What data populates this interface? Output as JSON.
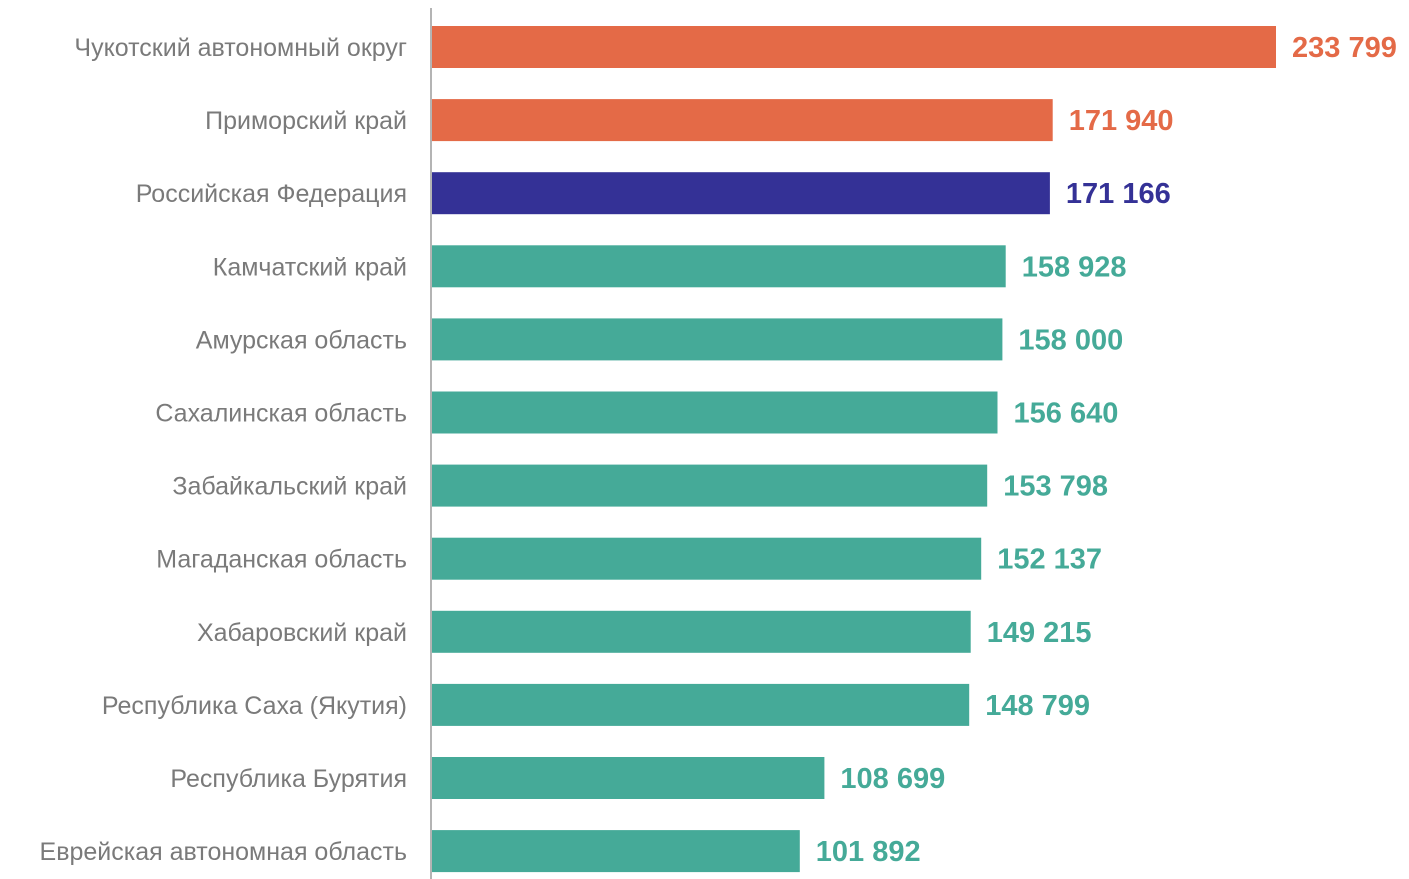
{
  "chart_data": {
    "type": "bar",
    "orientation": "horizontal",
    "categories": [
      "Чукотский автономный округ",
      "Приморский край",
      "Российская Федерация",
      "Камчатский край",
      "Амурская область",
      "Сахалинская область",
      "Забайкальский край",
      "Магаданская область",
      "Хабаровский край",
      "Республика Саха (Якутия)",
      "Республика Бурятия",
      "Еврейская автономная область"
    ],
    "values": [
      233799,
      171940,
      171166,
      158928,
      158000,
      156640,
      153798,
      152137,
      149215,
      148799,
      108699,
      101892
    ],
    "value_labels": [
      "233 799",
      "171 940",
      "171 166",
      "158 928",
      "158 000",
      "156 640",
      "153 798",
      "152 137",
      "149 215",
      "148 799",
      "108 699",
      "101 892"
    ],
    "bar_colors": [
      "#e46a47",
      "#e46a47",
      "#343196",
      "#45aa98",
      "#45aa98",
      "#45aa98",
      "#45aa98",
      "#45aa98",
      "#45aa98",
      "#45aa98",
      "#45aa98",
      "#45aa98"
    ],
    "title": "",
    "xlabel": "",
    "ylabel": "",
    "xlim": [
      0,
      233799
    ],
    "grid": false,
    "legend": "none"
  }
}
